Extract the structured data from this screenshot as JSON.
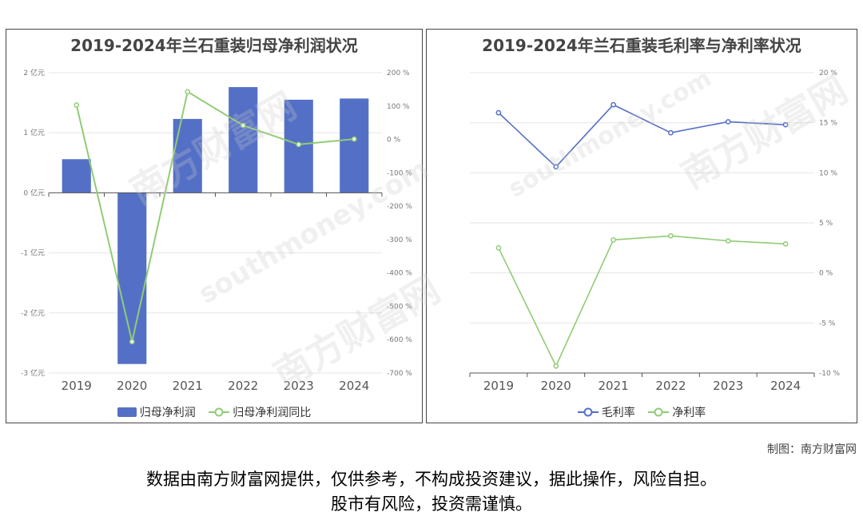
{
  "chart_data": [
    {
      "type": "bar+line",
      "title": "2019-2024年兰石重装归母净利润状况",
      "categories": [
        "2019",
        "2020",
        "2021",
        "2022",
        "2023",
        "2024"
      ],
      "y_left_unit": "亿元",
      "y_left_ticks": [
        "2 亿元",
        "1 亿元",
        "0 亿元",
        "-1 亿元",
        "-2 亿元",
        "-3 亿元"
      ],
      "y_left_range": [
        -3,
        2
      ],
      "y_right_ticks": [
        "200 %",
        "100 %",
        "0 %",
        "-100 %",
        "-200 %",
        "-300 %",
        "-400 %",
        "-500 %",
        "-600 %",
        "-700 %"
      ],
      "y_right_range": [
        -700,
        200
      ],
      "series": [
        {
          "name": "归母净利润",
          "type": "bar",
          "axis": "left",
          "color": "#5470c6",
          "values": [
            0.56,
            -2.85,
            1.23,
            1.76,
            1.55,
            1.57
          ]
        },
        {
          "name": "归母净利润同比",
          "type": "line",
          "axis": "right",
          "color": "#91cc75",
          "values": [
            103,
            -606,
            143,
            42,
            -15,
            1
          ]
        }
      ],
      "legend": "bottom"
    },
    {
      "type": "line",
      "title": "2019-2024年兰石重装毛利率与净利率状况",
      "categories": [
        "2019",
        "2020",
        "2021",
        "2022",
        "2023",
        "2024"
      ],
      "y_right_ticks": [
        "20 %",
        "15 %",
        "10 %",
        "5 %",
        "0 %",
        "-5 %",
        "-10 %"
      ],
      "y_range": [
        -10,
        20
      ],
      "series": [
        {
          "name": "毛利率",
          "color": "#5470c6",
          "values": [
            16.0,
            10.6,
            16.8,
            14.0,
            15.1,
            14.8
          ]
        },
        {
          "name": "净利率",
          "color": "#91cc75",
          "values": [
            2.5,
            -9.3,
            3.3,
            3.7,
            3.2,
            2.9
          ]
        }
      ],
      "legend": "bottom"
    }
  ],
  "watermark_text": "南方财富网",
  "watermark_url": "southmoney.com",
  "credit": "制图：南方财富网",
  "disclaimer_line1": "数据由南方财富网提供，仅供参考，不构成投资建议，据此操作，风险自担。",
  "disclaimer_line2": "股市有风险，投资需谨慎。"
}
